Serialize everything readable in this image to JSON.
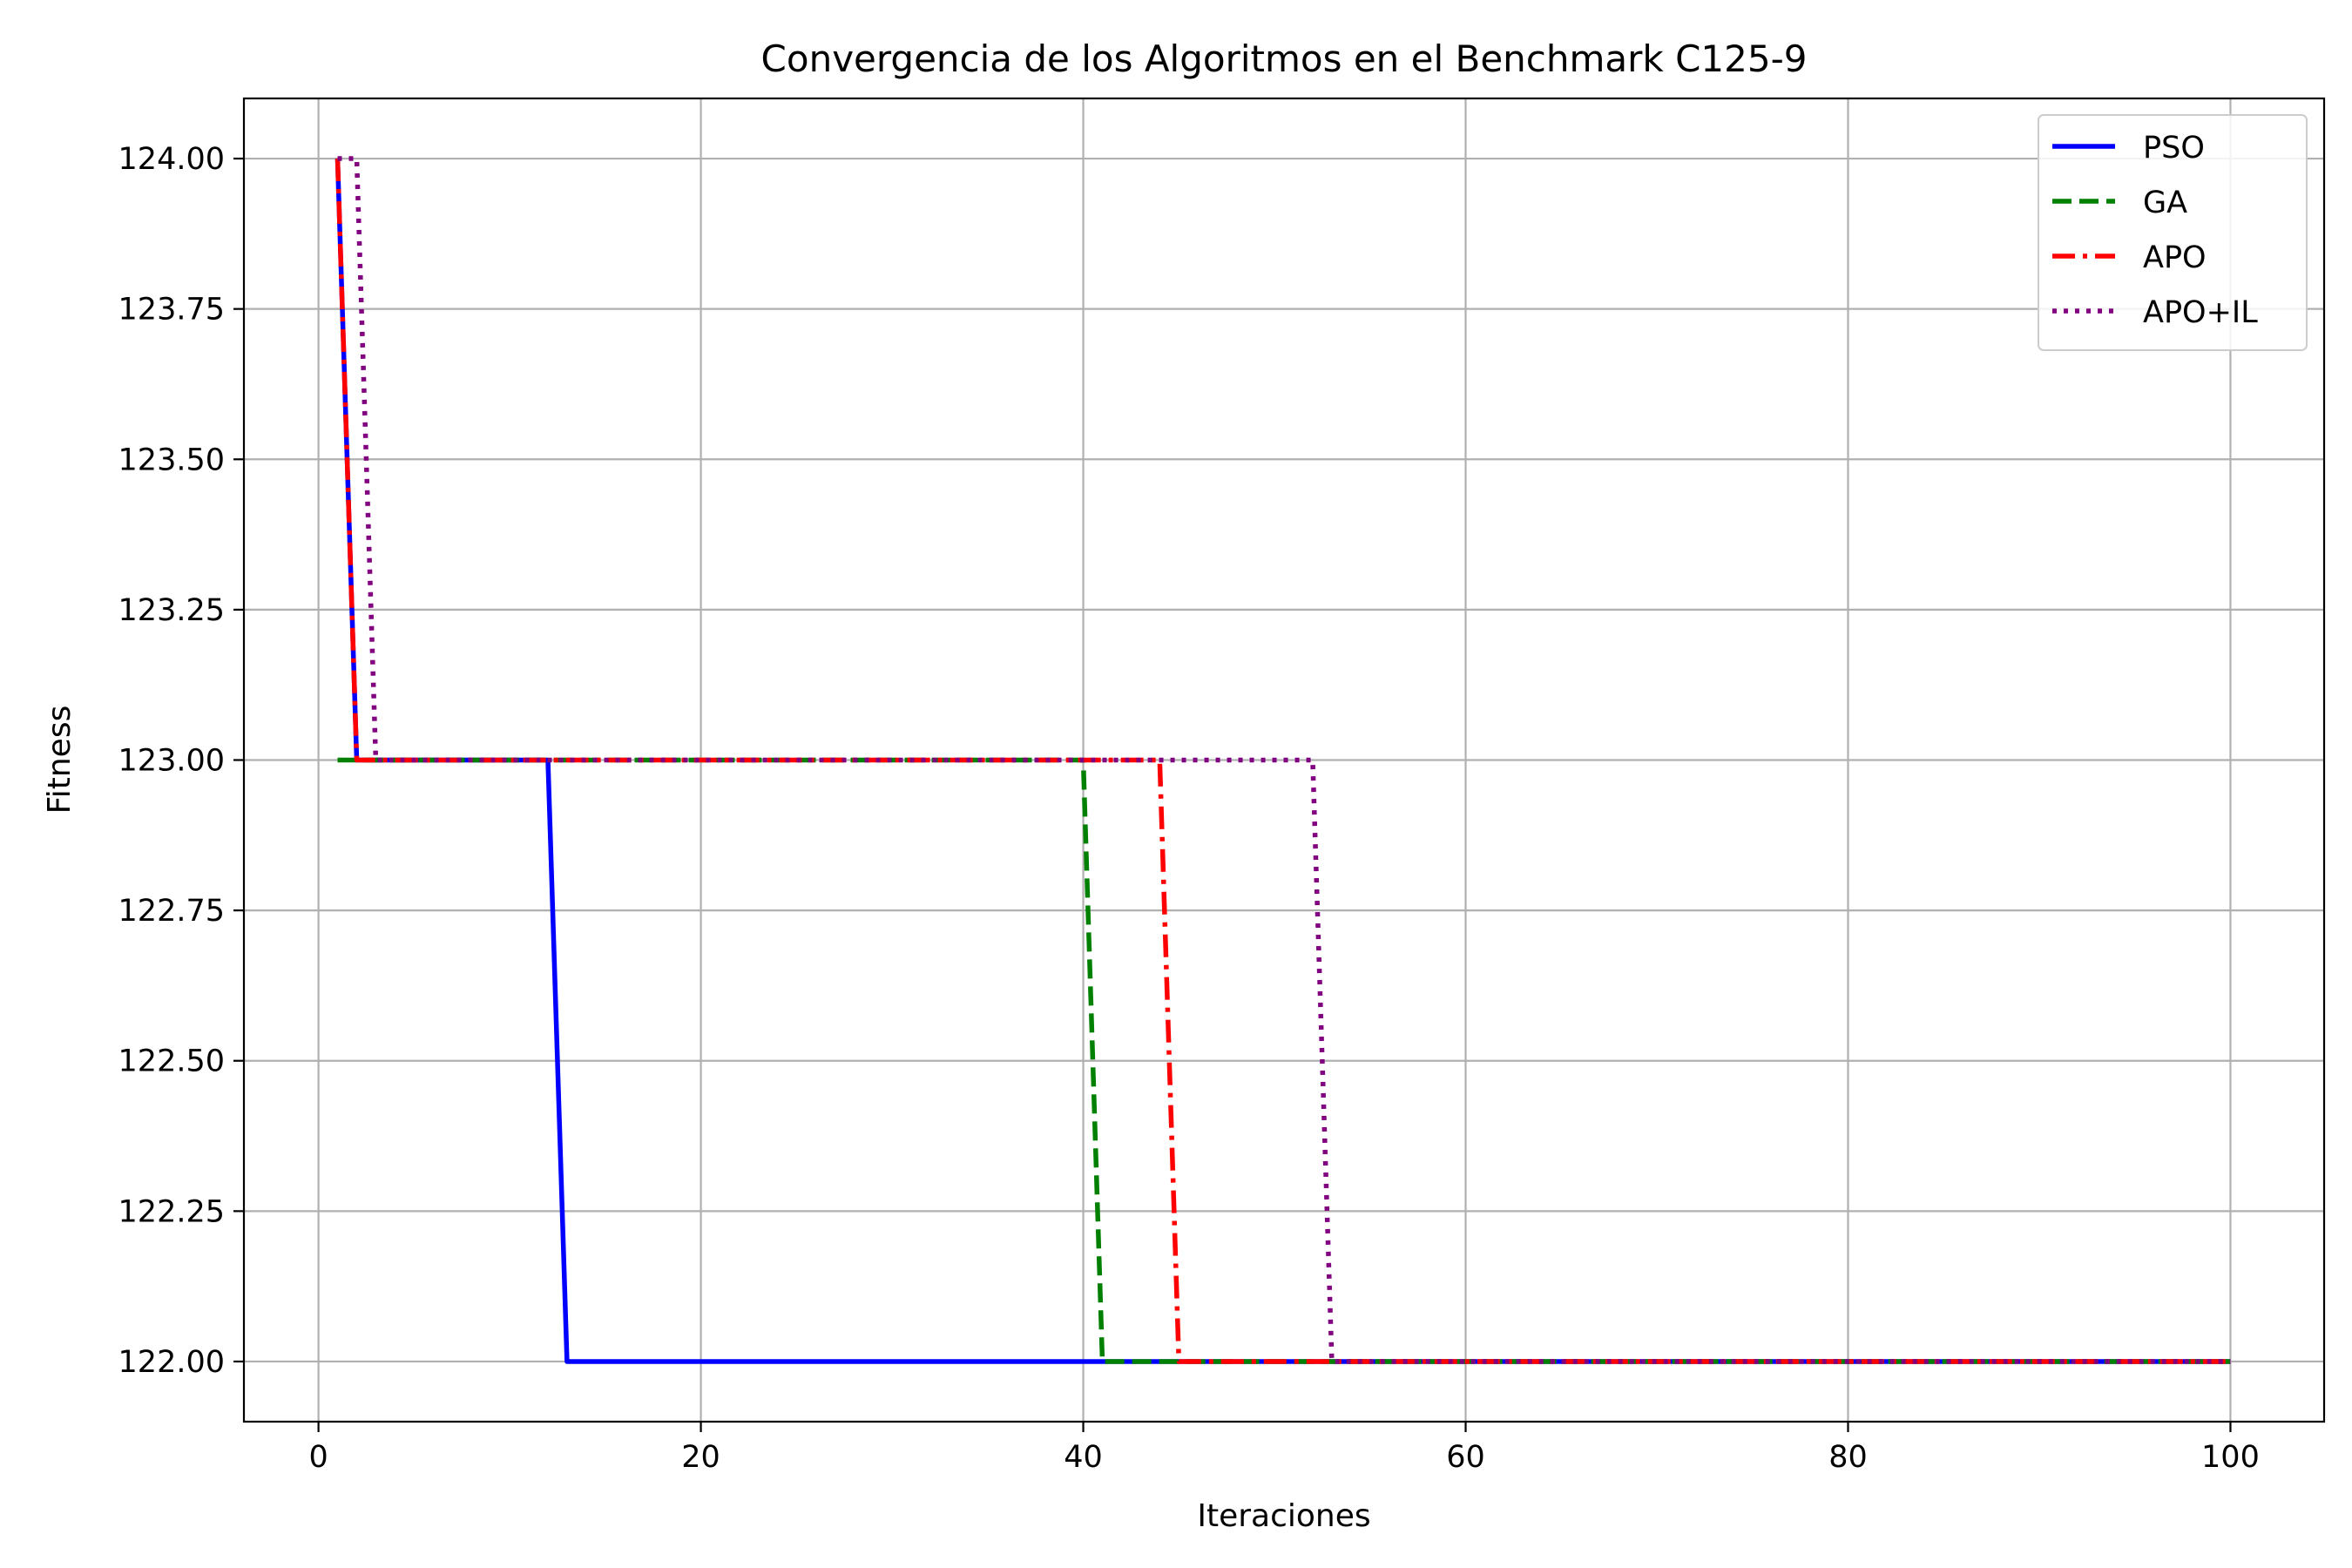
{
  "chart_data": {
    "type": "line",
    "title": "Convergencia de los Algoritmos en el Benchmark C125-9",
    "xlabel": "Iteraciones",
    "ylabel": "Fitness",
    "xlim": [
      -3.9,
      104.9
    ],
    "ylim": [
      121.9,
      124.1
    ],
    "xticks": [
      0,
      20,
      40,
      60,
      80,
      100
    ],
    "xtick_labels": [
      "0",
      "20",
      "40",
      "60",
      "80",
      "100"
    ],
    "yticks": [
      122.0,
      122.25,
      122.5,
      122.75,
      123.0,
      123.25,
      123.5,
      123.75,
      124.0
    ],
    "ytick_labels": [
      "122.00",
      "122.25",
      "122.50",
      "122.75",
      "123.00",
      "123.25",
      "123.50",
      "123.75",
      "124.00"
    ],
    "grid": true,
    "legend_position": "top-right",
    "series": [
      {
        "name": "PSO",
        "color": "#0000ff",
        "style": "solid",
        "points": [
          [
            1,
            124
          ],
          [
            2,
            123
          ],
          [
            12,
            123
          ],
          [
            13,
            122
          ],
          [
            100,
            122
          ]
        ]
      },
      {
        "name": "GA",
        "color": "#008000",
        "style": "dashed",
        "points": [
          [
            1,
            123
          ],
          [
            40,
            123
          ],
          [
            41,
            122
          ],
          [
            100,
            122
          ]
        ]
      },
      {
        "name": "APO",
        "color": "#ff0000",
        "style": "dashdot",
        "points": [
          [
            1,
            124
          ],
          [
            2,
            123
          ],
          [
            44,
            123
          ],
          [
            45,
            122
          ],
          [
            100,
            122
          ]
        ]
      },
      {
        "name": "APO+IL",
        "color": "#800080",
        "style": "dotted",
        "points": [
          [
            1,
            124
          ],
          [
            2,
            124
          ],
          [
            3,
            123
          ],
          [
            52,
            123
          ],
          [
            53,
            122
          ],
          [
            100,
            122
          ]
        ]
      }
    ]
  }
}
